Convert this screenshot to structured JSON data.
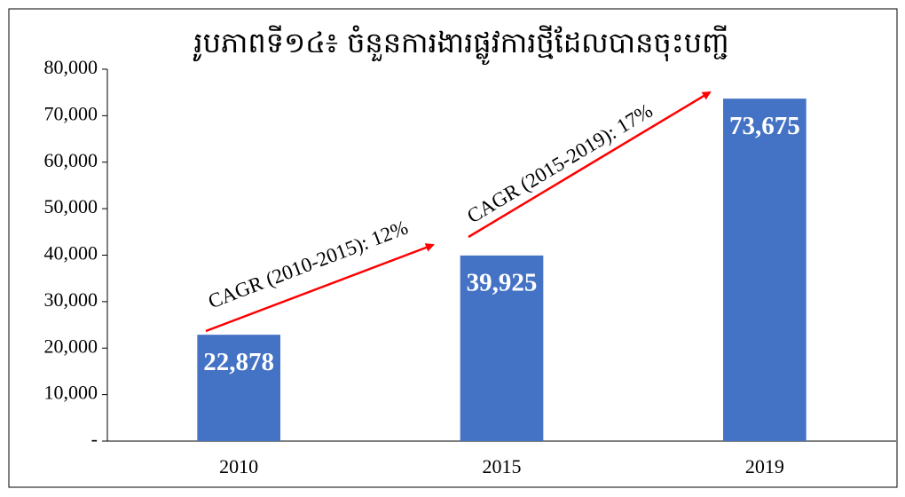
{
  "chart_data": {
    "type": "bar",
    "title": "រូបភាពទី១៤៖ ចំនួនការងារផ្លូវការថ្មីដែលបានចុះបញ្ជី",
    "categories": [
      "2010",
      "2015",
      "2019"
    ],
    "values": [
      22878,
      39925,
      73675
    ],
    "value_labels": [
      "22,878",
      "39,925",
      "73,675"
    ],
    "color": "#4472c4",
    "ylim": [
      0,
      80000
    ],
    "yticks": [
      {
        "value": 0,
        "label": "-"
      },
      {
        "value": 10000,
        "label": "10,000"
      },
      {
        "value": 20000,
        "label": "20,000"
      },
      {
        "value": 30000,
        "label": "30,000"
      },
      {
        "value": 40000,
        "label": "40,000"
      },
      {
        "value": 50000,
        "label": "50,000"
      },
      {
        "value": 60000,
        "label": "60,000"
      },
      {
        "value": 70000,
        "label": "70,000"
      },
      {
        "value": 80000,
        "label": "80,000"
      }
    ],
    "annotations": [
      "CAGR (2010-2015): 12%",
      "CAGR (2015-2019): 17%"
    ],
    "grid": false
  }
}
